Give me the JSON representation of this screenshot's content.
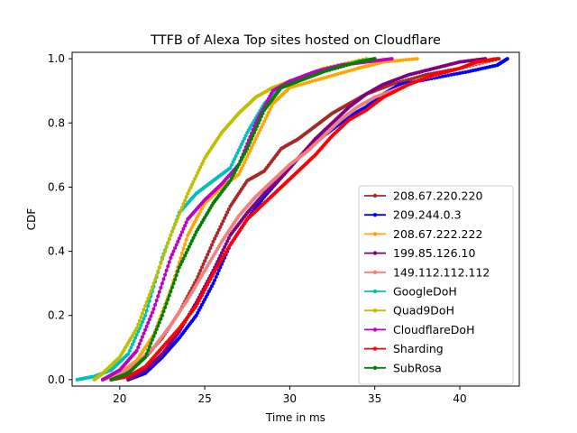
{
  "chart_data": {
    "type": "line",
    "title": "TTFB of Alexa Top sites hosted on Cloudflare",
    "xlabel": "Time in ms",
    "ylabel": "CDF",
    "xlim": [
      17.2,
      43.5
    ],
    "ylim": [
      -0.02,
      1.02
    ],
    "xticks": [
      20,
      25,
      30,
      35,
      40
    ],
    "yticks": [
      0.0,
      0.2,
      0.4,
      0.6,
      0.8,
      1.0
    ],
    "xtick_labels": [
      "20",
      "25",
      "30",
      "35",
      "40"
    ],
    "ytick_labels": [
      "0.0",
      "0.2",
      "0.4",
      "0.6",
      "0.8",
      "1.0"
    ],
    "legend_position": "lower-right",
    "series": [
      {
        "name": "208.67.220.220",
        "color": "#a52a2a",
        "points": [
          [
            19.5,
            0.0
          ],
          [
            20.5,
            0.03
          ],
          [
            21.5,
            0.07
          ],
          [
            22.5,
            0.13
          ],
          [
            23.5,
            0.21
          ],
          [
            24.5,
            0.31
          ],
          [
            25.5,
            0.43
          ],
          [
            26.5,
            0.54
          ],
          [
            27.5,
            0.62
          ],
          [
            28.5,
            0.65
          ],
          [
            29.5,
            0.72
          ],
          [
            30.5,
            0.75
          ],
          [
            31.5,
            0.79
          ],
          [
            32.5,
            0.83
          ],
          [
            33.5,
            0.86
          ],
          [
            34.5,
            0.89
          ],
          [
            36.0,
            0.92
          ],
          [
            38.0,
            0.95
          ],
          [
            40.0,
            0.97
          ],
          [
            42.3,
            1.0
          ]
        ]
      },
      {
        "name": "209.244.0.3",
        "color": "#0000ff",
        "points": [
          [
            20.5,
            0.0
          ],
          [
            21.5,
            0.02
          ],
          [
            22.5,
            0.07
          ],
          [
            23.5,
            0.13
          ],
          [
            24.5,
            0.2
          ],
          [
            25.5,
            0.3
          ],
          [
            26.5,
            0.42
          ],
          [
            27.5,
            0.5
          ],
          [
            28.5,
            0.57
          ],
          [
            29.5,
            0.63
          ],
          [
            30.5,
            0.69
          ],
          [
            31.5,
            0.74
          ],
          [
            32.5,
            0.78
          ],
          [
            33.5,
            0.82
          ],
          [
            34.5,
            0.85
          ],
          [
            35.5,
            0.89
          ],
          [
            36.5,
            0.92
          ],
          [
            38.5,
            0.94
          ],
          [
            40.5,
            0.96
          ],
          [
            42.2,
            0.98
          ],
          [
            42.8,
            1.0
          ]
        ]
      },
      {
        "name": "208.67.222.222",
        "color": "#ffa500",
        "points": [
          [
            19.0,
            0.0
          ],
          [
            20.0,
            0.02
          ],
          [
            21.0,
            0.06
          ],
          [
            22.0,
            0.14
          ],
          [
            23.0,
            0.28
          ],
          [
            24.0,
            0.45
          ],
          [
            25.0,
            0.55
          ],
          [
            26.0,
            0.6
          ],
          [
            27.0,
            0.64
          ],
          [
            28.0,
            0.75
          ],
          [
            29.0,
            0.86
          ],
          [
            30.0,
            0.91
          ],
          [
            32.0,
            0.94
          ],
          [
            34.0,
            0.97
          ],
          [
            35.5,
            0.99
          ],
          [
            37.5,
            1.0
          ]
        ]
      },
      {
        "name": "199.85.126.10",
        "color": "#800080",
        "points": [
          [
            20.5,
            0.0
          ],
          [
            21.5,
            0.03
          ],
          [
            22.5,
            0.08
          ],
          [
            23.5,
            0.15
          ],
          [
            24.5,
            0.24
          ],
          [
            25.5,
            0.34
          ],
          [
            26.5,
            0.45
          ],
          [
            27.5,
            0.52
          ],
          [
            28.5,
            0.58
          ],
          [
            29.5,
            0.63
          ],
          [
            30.5,
            0.69
          ],
          [
            31.5,
            0.75
          ],
          [
            32.5,
            0.8
          ],
          [
            33.5,
            0.85
          ],
          [
            34.5,
            0.89
          ],
          [
            35.5,
            0.92
          ],
          [
            37.0,
            0.95
          ],
          [
            38.5,
            0.97
          ],
          [
            40.0,
            0.99
          ],
          [
            41.5,
            1.0
          ]
        ]
      },
      {
        "name": "149.112.112.112",
        "color": "#f08080",
        "points": [
          [
            19.0,
            0.0
          ],
          [
            20.0,
            0.02
          ],
          [
            21.0,
            0.05
          ],
          [
            22.0,
            0.1
          ],
          [
            23.0,
            0.17
          ],
          [
            24.0,
            0.25
          ],
          [
            25.0,
            0.34
          ],
          [
            26.0,
            0.43
          ],
          [
            27.0,
            0.51
          ],
          [
            28.0,
            0.57
          ],
          [
            29.0,
            0.62
          ],
          [
            30.0,
            0.67
          ],
          [
            31.0,
            0.71
          ],
          [
            32.0,
            0.76
          ],
          [
            33.0,
            0.81
          ],
          [
            34.0,
            0.85
          ],
          [
            35.0,
            0.88
          ],
          [
            36.5,
            0.91
          ],
          [
            38.0,
            0.94
          ],
          [
            40.0,
            0.97
          ],
          [
            42.0,
            1.0
          ]
        ]
      },
      {
        "name": "GoogleDoH",
        "color": "#00bfbf",
        "points": [
          [
            17.5,
            0.0
          ],
          [
            18.5,
            0.01
          ],
          [
            19.5,
            0.03
          ],
          [
            20.5,
            0.08
          ],
          [
            21.5,
            0.2
          ],
          [
            22.5,
            0.38
          ],
          [
            23.5,
            0.52
          ],
          [
            24.5,
            0.58
          ],
          [
            25.5,
            0.62
          ],
          [
            26.5,
            0.66
          ],
          [
            27.5,
            0.77
          ],
          [
            28.5,
            0.86
          ],
          [
            29.5,
            0.91
          ],
          [
            30.5,
            0.93
          ],
          [
            32.0,
            0.96
          ],
          [
            34.0,
            0.99
          ],
          [
            35.0,
            1.0
          ]
        ]
      },
      {
        "name": "Quad9DoH",
        "color": "#bfbf00",
        "points": [
          [
            18.5,
            0.0
          ],
          [
            19.0,
            0.02
          ],
          [
            20.0,
            0.07
          ],
          [
            21.0,
            0.16
          ],
          [
            22.0,
            0.3
          ],
          [
            23.0,
            0.45
          ],
          [
            24.0,
            0.58
          ],
          [
            25.0,
            0.69
          ],
          [
            26.0,
            0.77
          ],
          [
            27.0,
            0.83
          ],
          [
            28.0,
            0.88
          ],
          [
            29.0,
            0.91
          ],
          [
            30.5,
            0.94
          ],
          [
            32.0,
            0.97
          ],
          [
            34.5,
            1.0
          ]
        ]
      },
      {
        "name": "CloudflareDoH",
        "color": "#bf00bf",
        "points": [
          [
            19.0,
            0.0
          ],
          [
            20.0,
            0.03
          ],
          [
            21.0,
            0.09
          ],
          [
            22.0,
            0.22
          ],
          [
            23.0,
            0.38
          ],
          [
            24.0,
            0.5
          ],
          [
            25.0,
            0.56
          ],
          [
            26.0,
            0.61
          ],
          [
            27.0,
            0.67
          ],
          [
            28.0,
            0.8
          ],
          [
            29.0,
            0.9
          ],
          [
            30.0,
            0.93
          ],
          [
            31.5,
            0.96
          ],
          [
            33.0,
            0.98
          ],
          [
            34.5,
            0.99
          ],
          [
            36.0,
            1.0
          ]
        ]
      },
      {
        "name": "Sharding",
        "color": "#ff0000",
        "points": [
          [
            19.5,
            0.0
          ],
          [
            20.5,
            0.01
          ],
          [
            21.5,
            0.04
          ],
          [
            22.5,
            0.1
          ],
          [
            23.5,
            0.16
          ],
          [
            24.5,
            0.23
          ],
          [
            25.5,
            0.33
          ],
          [
            26.5,
            0.42
          ],
          [
            27.5,
            0.5
          ],
          [
            28.5,
            0.55
          ],
          [
            29.5,
            0.6
          ],
          [
            30.5,
            0.65
          ],
          [
            31.5,
            0.7
          ],
          [
            32.5,
            0.76
          ],
          [
            33.5,
            0.81
          ],
          [
            34.5,
            0.84
          ],
          [
            35.5,
            0.88
          ],
          [
            37.0,
            0.92
          ],
          [
            38.5,
            0.95
          ],
          [
            40.0,
            0.97
          ],
          [
            41.0,
            0.99
          ],
          [
            42.2,
            1.0
          ]
        ]
      },
      {
        "name": "SubRosa",
        "color": "#008000",
        "points": [
          [
            19.5,
            0.0
          ],
          [
            20.5,
            0.02
          ],
          [
            21.5,
            0.07
          ],
          [
            22.5,
            0.2
          ],
          [
            23.5,
            0.35
          ],
          [
            24.5,
            0.46
          ],
          [
            25.5,
            0.55
          ],
          [
            26.5,
            0.62
          ],
          [
            27.5,
            0.72
          ],
          [
            28.5,
            0.84
          ],
          [
            29.5,
            0.91
          ],
          [
            30.5,
            0.93
          ],
          [
            32.0,
            0.96
          ],
          [
            34.0,
            0.99
          ],
          [
            35.0,
            1.0
          ]
        ]
      }
    ]
  }
}
